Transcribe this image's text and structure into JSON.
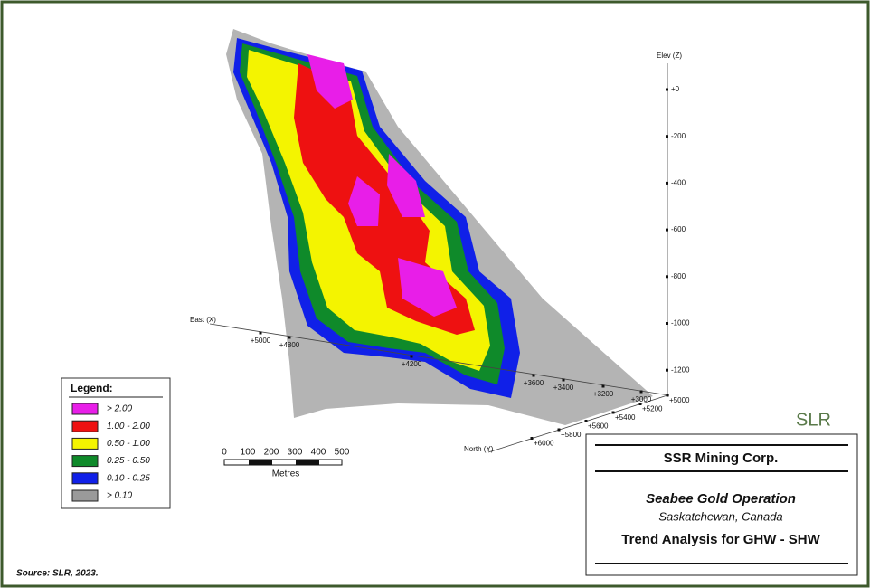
{
  "axes": {
    "elev": {
      "label": "Elev (Z)",
      "ticks": [
        "+0",
        "-200",
        "-400",
        "-600",
        "-800",
        "-1000",
        "-1200"
      ]
    },
    "east": {
      "label": "East (X)",
      "ticks": [
        "+5000",
        "+4800",
        "+4200",
        "+3600",
        "+3400",
        "+3200",
        "+3000"
      ]
    },
    "north": {
      "label": "North (Y)",
      "ticks": [
        "+5000",
        "+5200",
        "+5400",
        "+5600",
        "+5800",
        "+6000"
      ]
    }
  },
  "legend": {
    "title": "Legend:",
    "items": [
      {
        "label": "> 2.00",
        "color": "#e81ee8"
      },
      {
        "label": "1.00 - 2.00",
        "color": "#ee1111"
      },
      {
        "label": "0.50 - 1.00",
        "color": "#f4f400"
      },
      {
        "label": "0.25 - 0.50",
        "color": "#0f8a2a"
      },
      {
        "label": "0.10 - 0.25",
        "color": "#1020e8"
      },
      {
        "label": "> 0.10",
        "color": "#9a9a9a"
      }
    ]
  },
  "scale_bar": {
    "labels": [
      "0",
      "100",
      "200",
      "300",
      "400",
      "500"
    ],
    "unit": "Metres"
  },
  "title_block": {
    "company": "SSR Mining Corp.",
    "project": "Seabee Gold Operation",
    "location": "Saskatchewan, Canada",
    "title": "Trend Analysis for GHW - SHW"
  },
  "logo": "SLR",
  "source": "Source:  SLR, 2023."
}
